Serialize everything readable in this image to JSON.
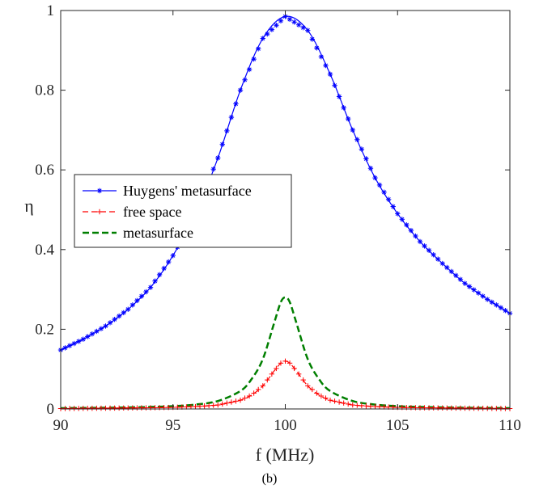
{
  "caption": "(b)",
  "chart_data": {
    "type": "line",
    "xlabel": "f (MHz)",
    "ylabel": "η",
    "xlim": [
      90,
      110
    ],
    "ylim": [
      0,
      1
    ],
    "x_ticks": [
      "90",
      "95",
      "100",
      "105",
      "110"
    ],
    "y_ticks": [
      "0",
      "0.2",
      "0.4",
      "0.6",
      "0.8",
      "1"
    ],
    "legend_position": "left-middle",
    "grid": false,
    "series": [
      {
        "name": "Huygens' metasurface",
        "color": "#0000ff",
        "style": "solid-star",
        "x": [
          90,
          91,
          92,
          93,
          94,
          95,
          96,
          97,
          98,
          99,
          100,
          101,
          102,
          103,
          104,
          105,
          106,
          107,
          108,
          109,
          110
        ],
        "y": [
          0.148,
          0.175,
          0.208,
          0.25,
          0.305,
          0.385,
          0.49,
          0.63,
          0.8,
          0.93,
          0.985,
          0.95,
          0.84,
          0.7,
          0.58,
          0.49,
          0.42,
          0.365,
          0.315,
          0.275,
          0.24
        ]
      },
      {
        "name": "free space",
        "color": "#ff0000",
        "style": "dashed-plus",
        "x": [
          90,
          92,
          94,
          95,
          96,
          97,
          98,
          98.5,
          99,
          99.5,
          99.8,
          100,
          100.2,
          100.5,
          101,
          101.5,
          102,
          103,
          104,
          105,
          106,
          108,
          110
        ],
        "y": [
          0.001,
          0.002,
          0.003,
          0.004,
          0.006,
          0.01,
          0.022,
          0.035,
          0.058,
          0.095,
          0.115,
          0.12,
          0.115,
          0.095,
          0.058,
          0.035,
          0.022,
          0.01,
          0.006,
          0.004,
          0.003,
          0.002,
          0.001
        ]
      },
      {
        "name": "metasurface",
        "color": "#007f00",
        "style": "dashed",
        "x": [
          90,
          92,
          94,
          95,
          96,
          97,
          98,
          98.5,
          99,
          99.5,
          99.8,
          100,
          100.2,
          100.5,
          101,
          101.5,
          102,
          103,
          104,
          105,
          106,
          108,
          110
        ],
        "y": [
          0.002,
          0.003,
          0.005,
          0.007,
          0.011,
          0.02,
          0.045,
          0.075,
          0.125,
          0.215,
          0.268,
          0.28,
          0.268,
          0.215,
          0.125,
          0.075,
          0.045,
          0.02,
          0.011,
          0.007,
          0.005,
          0.003,
          0.002
        ]
      }
    ]
  }
}
